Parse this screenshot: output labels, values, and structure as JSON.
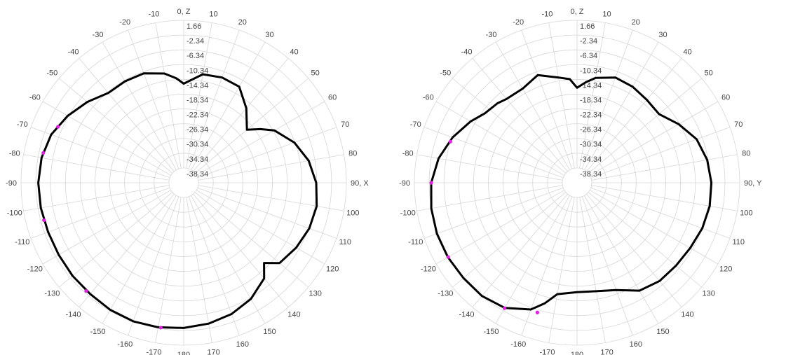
{
  "chart_data": [
    {
      "type": "line",
      "subtype": "polar",
      "angle_labels": [
        "0, Z",
        "10",
        "20",
        "30",
        "40",
        "50",
        "60",
        "70",
        "80",
        "90, X",
        "100",
        "110",
        "120",
        "130",
        "140",
        "150",
        "160",
        "170",
        "180",
        "-170",
        "-160",
        "-150",
        "-140",
        "-130",
        "-120",
        "-110",
        "-100",
        "-90",
        "-80",
        "-70",
        "-60",
        "-50",
        "-40",
        "-30",
        "-20",
        "-10"
      ],
      "radial_labels": [
        "1.66",
        "-2.34",
        "-6.34",
        "-10.34",
        "-14.34",
        "-18.34",
        "-22.34",
        "-26.34",
        "-30.34",
        "-34.34",
        "-38.34"
      ],
      "rlim": [
        -42.34,
        1.66
      ],
      "grid": true,
      "series": [
        {
          "angles": [
            0,
            10,
            20,
            30,
            40,
            50,
            55,
            60,
            70,
            80,
            90,
            100,
            110,
            120,
            130,
            135,
            140,
            150,
            160,
            170,
            180,
            -170,
            -160,
            -150,
            -140,
            -130,
            -120,
            -110,
            -100,
            -90,
            -80,
            -70,
            -60,
            -50,
            -40,
            -30,
            -20,
            -10,
            -4
          ],
          "values": [
            -15.5,
            -12.5,
            -12.0,
            -12.3,
            -16.0,
            -20.0,
            -17.0,
            -14.0,
            -10.5,
            -8.0,
            -6.5,
            -5.8,
            -6.2,
            -7.2,
            -8.5,
            -11.6,
            -8.5,
            -6.0,
            -4.5,
            -3.6,
            -3.0,
            -2.6,
            -2.4,
            -2.6,
            -3.0,
            -3.1,
            -3.3,
            -3.3,
            -3.1,
            -3.0,
            -3.3,
            -4.2,
            -6.1,
            -8.3,
            -10.6,
            -10.6,
            -10.8,
            -12.3,
            -14.0
          ]
        }
      ],
      "markers": [
        {
          "angle": -138,
          "value": -2.9
        },
        {
          "angle": -105,
          "value": -3.2
        },
        {
          "angle": -78,
          "value": -3.5
        },
        {
          "angle": -66,
          "value": -5.1
        },
        {
          "angle": -171,
          "value": -2.6
        }
      ]
    },
    {
      "type": "line",
      "subtype": "polar",
      "angle_labels": [
        "0, Z",
        "10",
        "20",
        "30",
        "40",
        "50",
        "60",
        "70",
        "80",
        "90, Y",
        "100",
        "110",
        "120",
        "130",
        "140",
        "150",
        "160",
        "170",
        "180",
        "-170",
        "-160",
        "-150",
        "-140",
        "-130",
        "-120",
        "-110",
        "-100",
        "-90",
        "-80",
        "-70",
        "-60",
        "-50",
        "-40",
        "-30",
        "-20",
        "-10"
      ],
      "radial_labels": [
        "1.66",
        "-2.34",
        "-6.34",
        "-10.34",
        "-14.34",
        "-18.34",
        "-22.34",
        "-26.34",
        "-30.34",
        "-34.34",
        "-38.34"
      ],
      "rlim": [
        -42.34,
        1.66
      ],
      "grid": true,
      "series": [
        {
          "angles": [
            0,
            5,
            10,
            20,
            30,
            40,
            50,
            60,
            70,
            80,
            90,
            100,
            110,
            120,
            130,
            140,
            150,
            160,
            170,
            180,
            -170,
            -165,
            -160,
            -150,
            -140,
            -130,
            -120,
            -110,
            -100,
            -90,
            -80,
            -70,
            -60,
            -53,
            -45,
            -40,
            -30,
            -20,
            -10,
            -4
          ],
          "values": [
            -16.6,
            -15.0,
            -13.5,
            -12.0,
            -12.3,
            -13.0,
            -13.4,
            -10.6,
            -7.9,
            -6.6,
            -6.0,
            -5.9,
            -6.3,
            -7.0,
            -7.4,
            -7.6,
            -8.6,
            -11.4,
            -12.5,
            -12.7,
            -11.7,
            -8.5,
            -5.8,
            -3.2,
            -2.3,
            -2.2,
            -2.0,
            -2.0,
            -2.3,
            -2.9,
            -4.3,
            -6.5,
            -9.1,
            -11.1,
            -11.9,
            -12.7,
            -12.9,
            -11.3,
            -13.4,
            -14.2
          ]
        }
      ],
      "markers": [
        {
          "angle": -90,
          "value": -2.9
        },
        {
          "angle": -72,
          "value": -6.3
        },
        {
          "angle": -120,
          "value": -2.1
        },
        {
          "angle": -150,
          "value": -3.1
        },
        {
          "angle": -163,
          "value": -5.6
        }
      ]
    }
  ]
}
